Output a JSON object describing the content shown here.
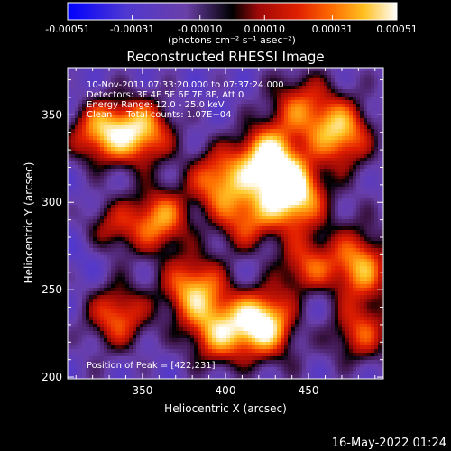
{
  "chart_data": {
    "type": "heatmap",
    "title": "Reconstructed RHESSI Image",
    "xlabel": "Heliocentric X (arcsec)",
    "ylabel": "Heliocentric Y (arcsec)",
    "xlim": [
      305,
      495
    ],
    "ylim": [
      199,
      377
    ],
    "x_ticks": [
      350,
      400,
      450
    ],
    "y_ticks": [
      200,
      250,
      300,
      350
    ],
    "colorbar": {
      "range": [
        -0.00051,
        0.00051
      ],
      "tick_values": [
        -0.00051,
        -0.00031,
        -0.0001,
        0.0001,
        0.00031,
        0.00051
      ],
      "tick_labels": [
        "-0.00051",
        "-0.00031",
        "-0.00010",
        "0.00010",
        "0.00031",
        "0.00051"
      ],
      "unit_label": "(photons cm⁻² s⁻¹ asec⁻²)",
      "colors": [
        "#0000ff",
        "#6040c0",
        "#000000",
        "#c01010",
        "#ff5a00",
        "#ffd020",
        "#ffffff"
      ]
    },
    "annotations": [
      "10-Nov-2011 07:33:20.000 to 07:37:24.000",
      "Detectors: 3F 4F 5F 6F 7F 8F, Att 0",
      "Energy Range: 12.0 - 25.0 keV",
      "Clean     Total counts: 1.07E+04"
    ],
    "peak_label": "Position of Peak = [422,231]",
    "peak": [
      422,
      231
    ],
    "bright_regions": [
      {
        "x": 440,
        "y": 305,
        "value": 0.00051
      },
      {
        "x": 422,
        "y": 231,
        "value": 0.00051
      },
      {
        "x": 425,
        "y": 325,
        "value": 0.00045
      },
      {
        "x": 470,
        "y": 340,
        "value": 0.0004
      },
      {
        "x": 445,
        "y": 355,
        "value": 0.00035
      },
      {
        "x": 350,
        "y": 340,
        "value": 0.00033
      },
      {
        "x": 395,
        "y": 312,
        "value": 0.00035
      },
      {
        "x": 325,
        "y": 340,
        "value": 0.0003
      },
      {
        "x": 360,
        "y": 290,
        "value": 0.00028
      },
      {
        "x": 380,
        "y": 250,
        "value": 0.00025
      },
      {
        "x": 450,
        "y": 260,
        "value": 0.00027
      },
      {
        "x": 480,
        "y": 260,
        "value": 0.00025
      },
      {
        "x": 335,
        "y": 235,
        "value": 0.00022
      },
      {
        "x": 395,
        "y": 225,
        "value": 0.00025
      },
      {
        "x": 480,
        "y": 225,
        "value": 0.0002
      },
      {
        "x": 330,
        "y": 285,
        "value": 0.0002
      },
      {
        "x": 412,
        "y": 290,
        "value": 0.00022
      }
    ]
  },
  "footer": {
    "timestamp": "16-May-2022 01:24"
  }
}
